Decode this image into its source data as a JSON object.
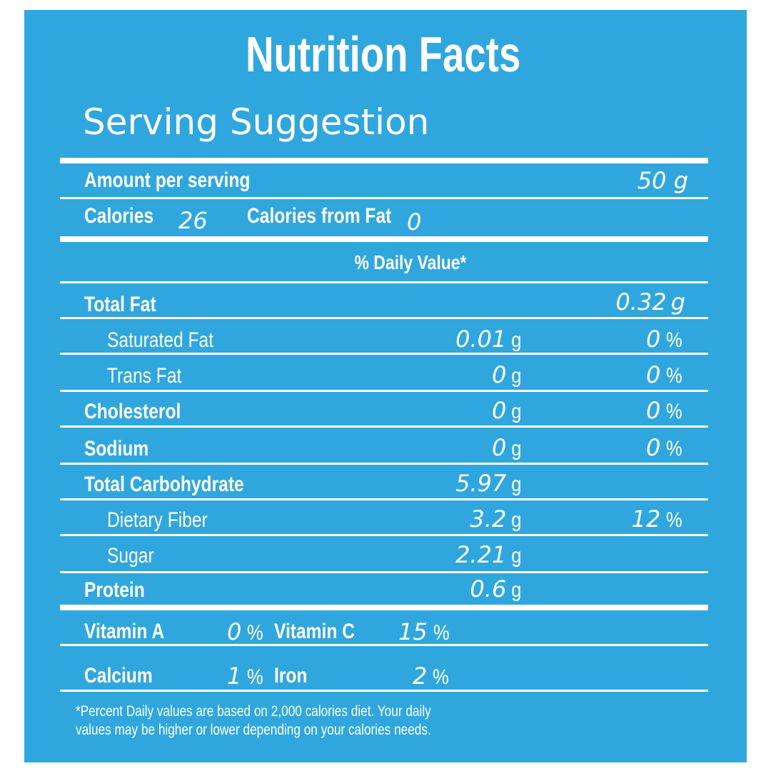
{
  "header": {
    "title": "Nutrition Facts",
    "subtitle": "Serving Suggestion"
  },
  "serving": {
    "label": "Amount per serving",
    "value": "50 g"
  },
  "calories": {
    "label": "Calories",
    "value": "26",
    "fat_label": "Calories from Fat",
    "fat_value": "0"
  },
  "daily_value_header": "% Daily Value*",
  "nutrients": [
    {
      "name": "Total Fat",
      "amount": "0.32",
      "unit": "g",
      "dv": "",
      "dv_unit": ""
    },
    {
      "name": "Saturated Fat",
      "amount": "0.01",
      "unit": "g",
      "dv": "0",
      "dv_unit": "%"
    },
    {
      "name": "Trans Fat",
      "amount": "0",
      "unit": "g",
      "dv": "0",
      "dv_unit": "%"
    },
    {
      "name": "Cholesterol",
      "amount": "0",
      "unit": "g",
      "dv": "0",
      "dv_unit": "%"
    },
    {
      "name": "Sodium",
      "amount": "0",
      "unit": "g",
      "dv": "0",
      "dv_unit": "%"
    },
    {
      "name": "Total Carbohydrate",
      "amount": "5.97",
      "unit": "g",
      "dv": "",
      "dv_unit": ""
    },
    {
      "name": "Dietary Fiber",
      "amount": "3.2",
      "unit": "g",
      "dv": "12",
      "dv_unit": "%"
    },
    {
      "name": "Sugar",
      "amount": "2.21",
      "unit": "g",
      "dv": "",
      "dv_unit": ""
    },
    {
      "name": "Protein",
      "amount": "0.6",
      "unit": "g",
      "dv": "",
      "dv_unit": ""
    }
  ],
  "vitamins": [
    {
      "name": "Vitamin A",
      "value": "0",
      "unit": "%"
    },
    {
      "name": "Vitamin C",
      "value": "15",
      "unit": "%"
    },
    {
      "name": "Calcium",
      "value": "1",
      "unit": "%"
    },
    {
      "name": "Iron",
      "value": "2",
      "unit": "%"
    }
  ],
  "footnote": {
    "line1": "*Percent Daily values are based on 2,000 calories diet. Your daily",
    "line2": "values may be higher or lower depending on your calories needs."
  },
  "colors": {
    "panel": "#2fa7de",
    "text": "#ffffff"
  }
}
